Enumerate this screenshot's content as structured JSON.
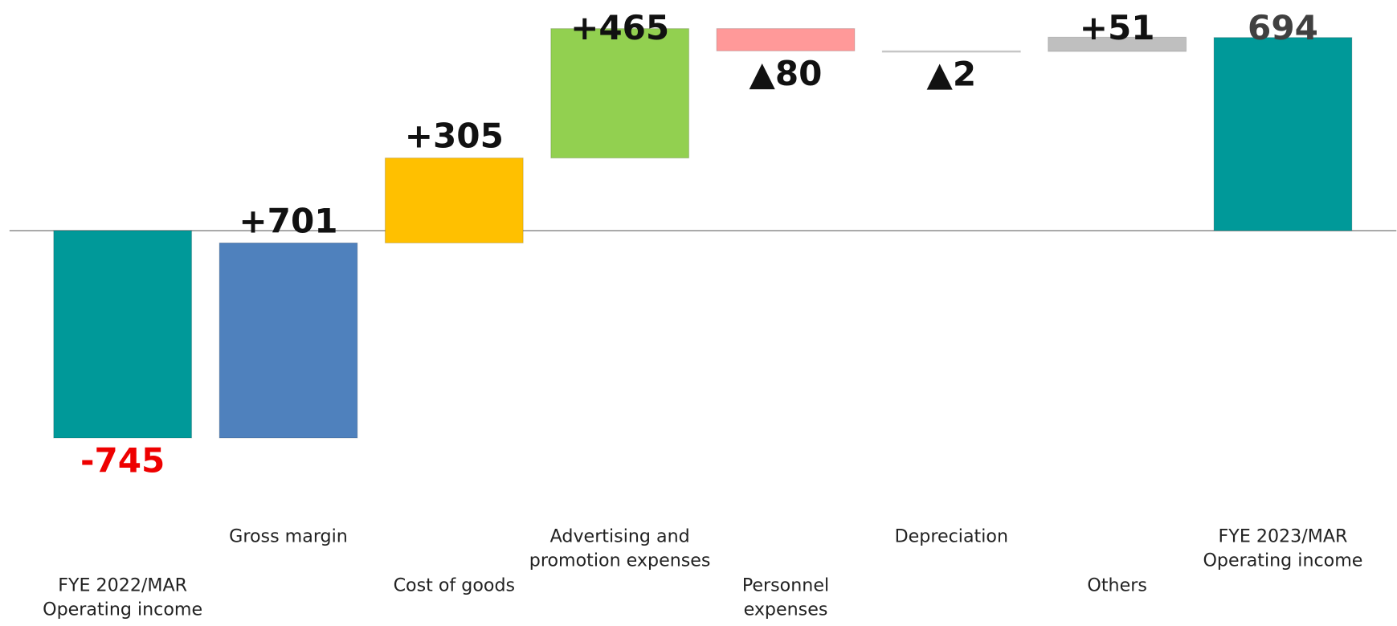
{
  "chart_data": {
    "type": "waterfall",
    "categories": [
      [
        "FYE 2022/MAR",
        "Operating income"
      ],
      [
        "Gross margin"
      ],
      [
        "Cost of goods"
      ],
      [
        "Advertising and",
        "promotion expenses"
      ],
      [
        "Personnel",
        "expenses"
      ],
      [
        "Depreciation"
      ],
      [
        "Others"
      ],
      [
        "FYE 2023/MAR",
        "Operating income"
      ]
    ],
    "values": [
      -745,
      701,
      305,
      465,
      -80,
      -2,
      51,
      694
    ],
    "value_labels": [
      "-745",
      "+701",
      "+305",
      "+465",
      "▲80",
      "▲2",
      "+51",
      "694"
    ],
    "colors": [
      "#009999",
      "#4f81bd",
      "#ffc000",
      "#92d050",
      "#ff9999",
      "#d9d9d9",
      "#bfbfbf",
      "#009999"
    ],
    "value_label_colors": [
      "#ee0000",
      "#111111",
      "#111111",
      "#111111",
      "#111111",
      "#111111",
      "#111111",
      "#404040"
    ],
    "ylim": [
      -800,
      800
    ]
  }
}
